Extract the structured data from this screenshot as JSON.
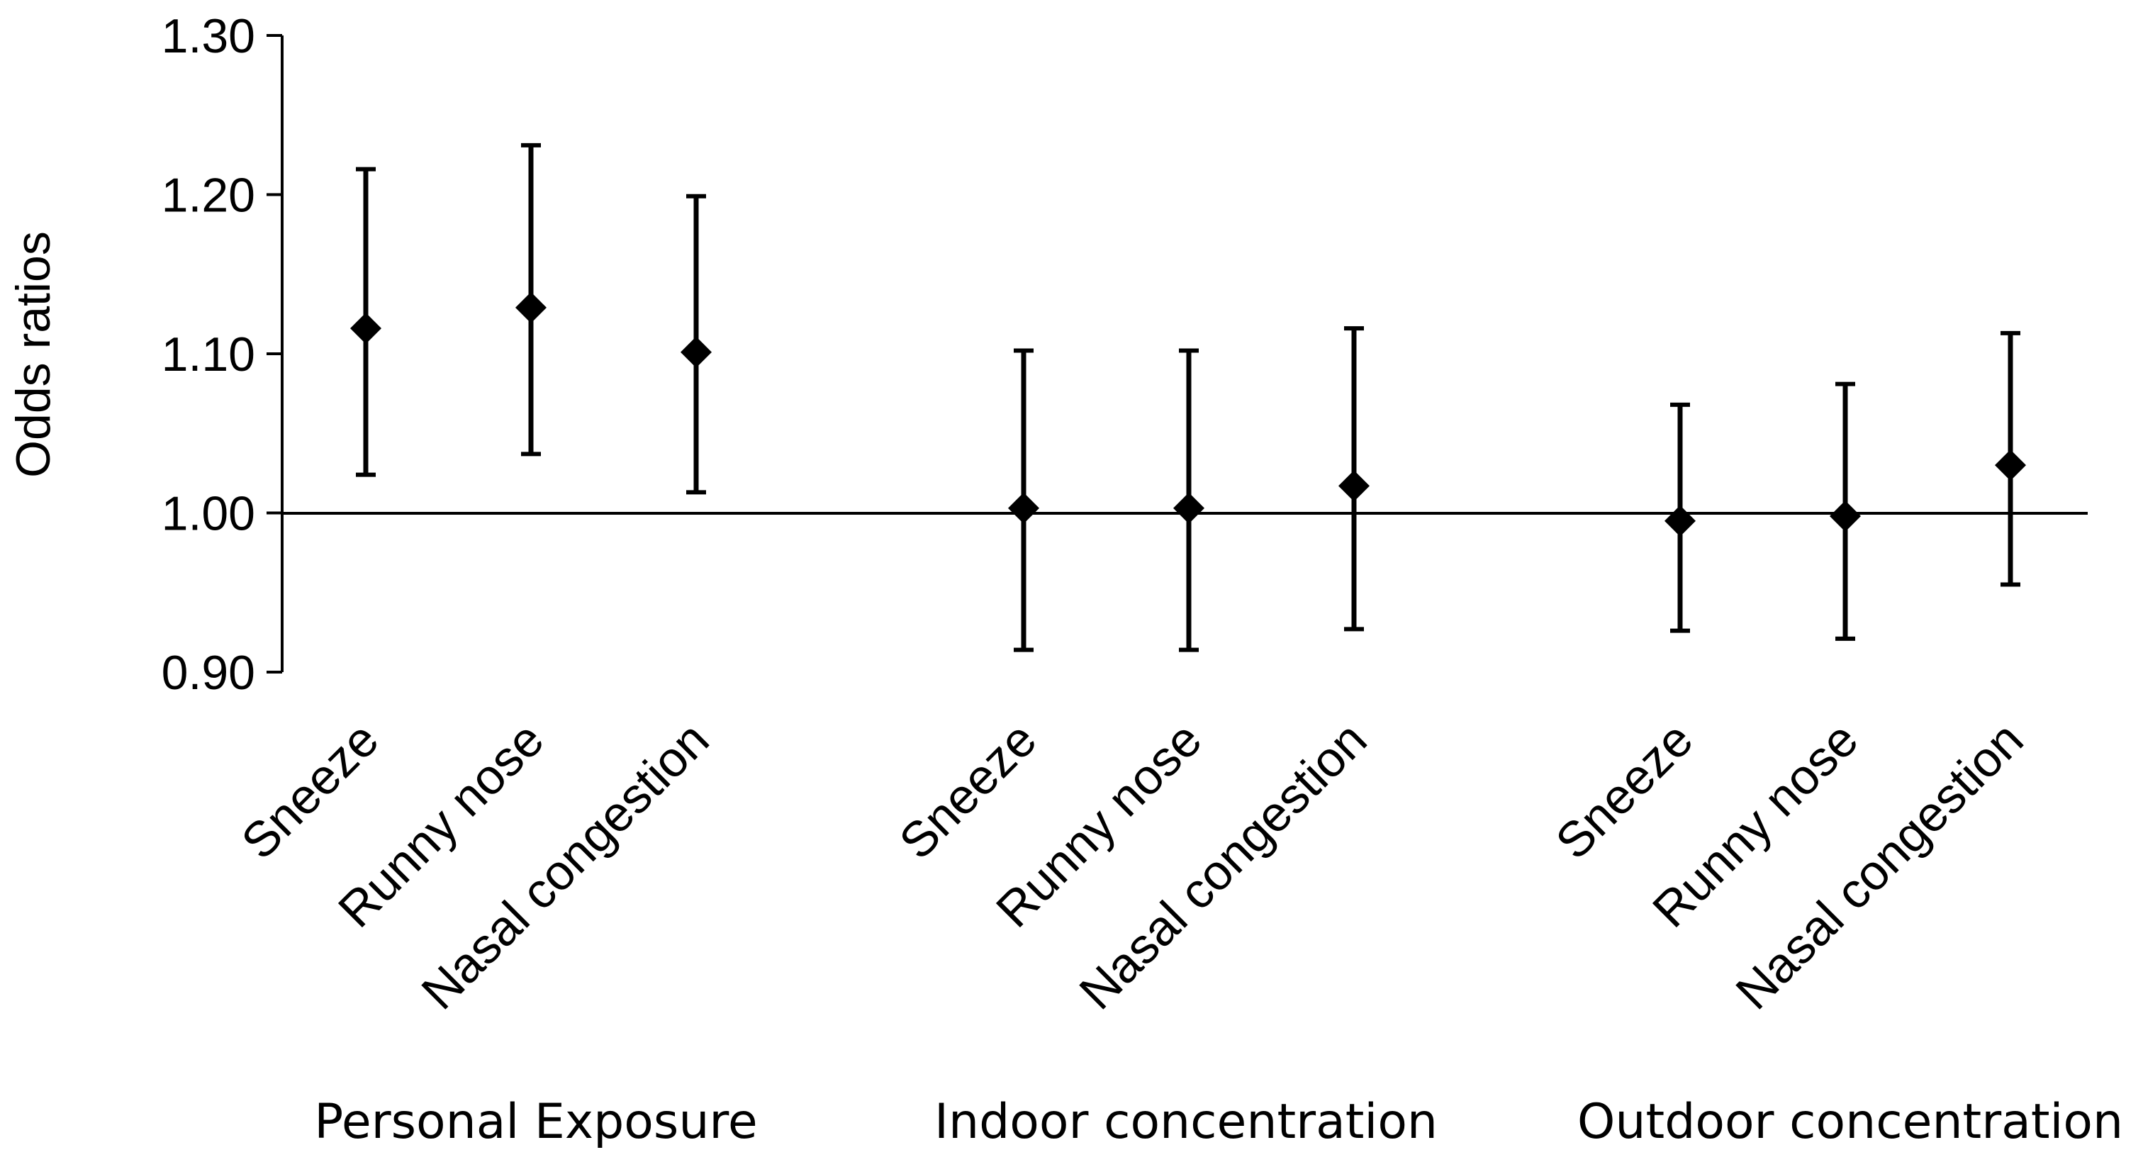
{
  "chart_data": {
    "type": "errorbar",
    "ylabel": "Odds ratios",
    "ylim": [
      0.9,
      1.3
    ],
    "yticks": [
      "0.90",
      "1.00",
      "1.10",
      "1.20",
      "1.30"
    ],
    "reference_line": 1.0,
    "groups": [
      {
        "name": "Personal Exposure",
        "points": [
          {
            "label": "Sneeze",
            "or": 1.116,
            "lower": 1.024,
            "upper": 1.216
          },
          {
            "label": "Runny nose",
            "or": 1.129,
            "lower": 1.037,
            "upper": 1.231
          },
          {
            "label": "Nasal congestion",
            "or": 1.101,
            "lower": 1.013,
            "upper": 1.199
          }
        ]
      },
      {
        "name": "Indoor concentration",
        "points": [
          {
            "label": "Sneeze",
            "or": 1.003,
            "lower": 0.914,
            "upper": 1.102
          },
          {
            "label": "Runny nose",
            "or": 1.003,
            "lower": 0.914,
            "upper": 1.102
          },
          {
            "label": "Nasal congestion",
            "or": 1.017,
            "lower": 0.927,
            "upper": 1.116
          }
        ]
      },
      {
        "name": "Outdoor concentration",
        "points": [
          {
            "label": "Sneeze",
            "or": 0.995,
            "lower": 0.926,
            "upper": 1.068
          },
          {
            "label": "Runny nose",
            "or": 0.998,
            "lower": 0.921,
            "upper": 1.081
          },
          {
            "label": "Nasal congestion",
            "or": 1.03,
            "lower": 0.955,
            "upper": 1.113
          }
        ]
      }
    ]
  }
}
